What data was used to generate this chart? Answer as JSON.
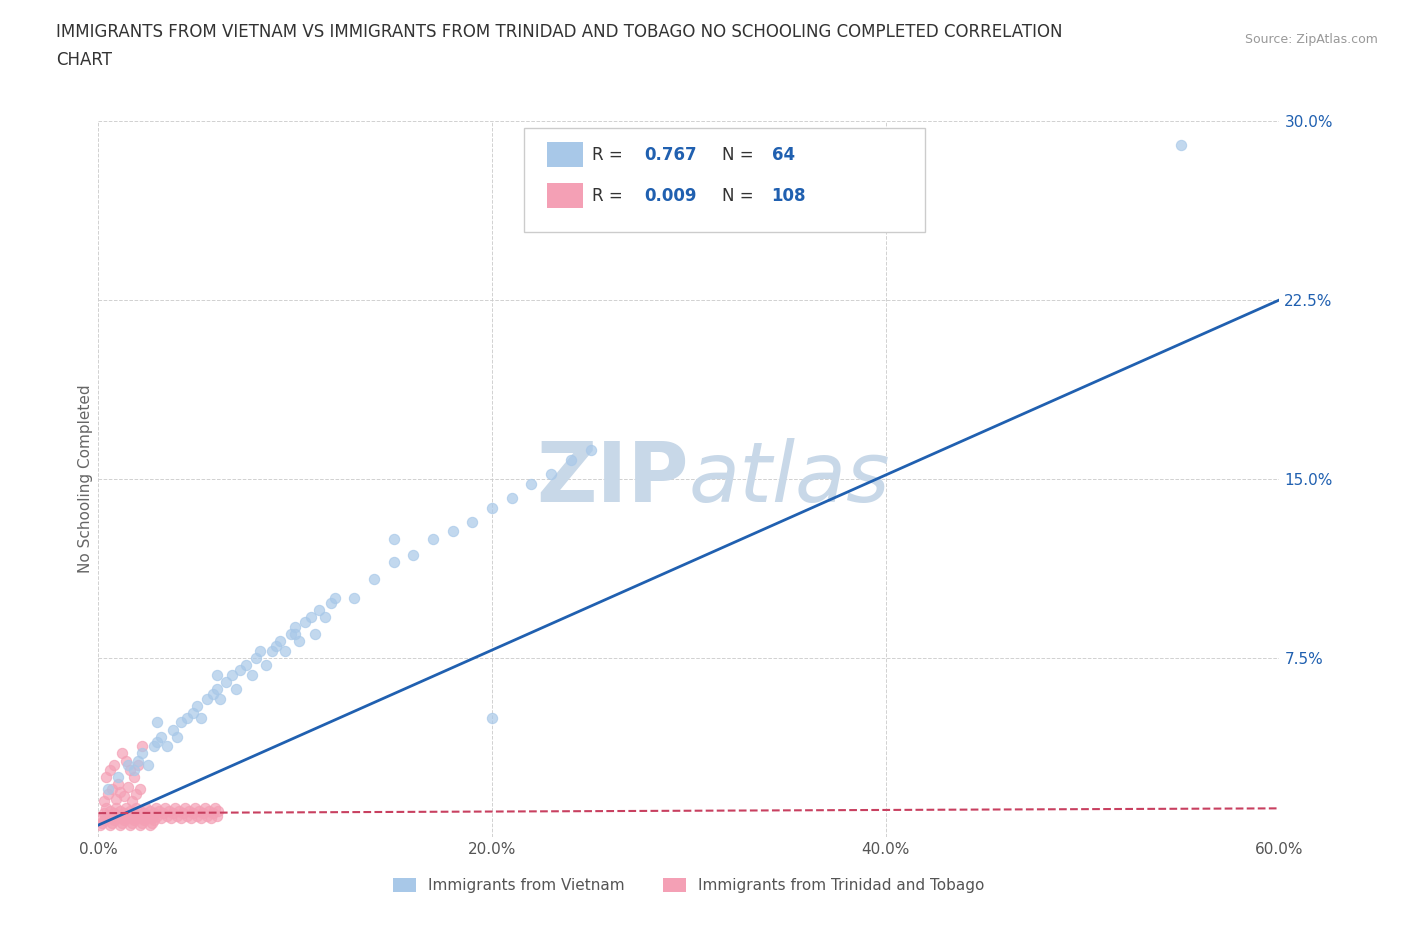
{
  "title_line1": "IMMIGRANTS FROM VIETNAM VS IMMIGRANTS FROM TRINIDAD AND TOBAGO NO SCHOOLING COMPLETED CORRELATION",
  "title_line2": "CHART",
  "source_text": "Source: ZipAtlas.com",
  "ylabel": "No Schooling Completed",
  "xlim": [
    0.0,
    0.6
  ],
  "ylim": [
    0.0,
    0.3
  ],
  "xtick_labels": [
    "0.0%",
    "20.0%",
    "40.0%",
    "60.0%"
  ],
  "xtick_values": [
    0.0,
    0.2,
    0.4,
    0.6
  ],
  "ytick_labels": [
    "7.5%",
    "15.0%",
    "22.5%",
    "30.0%"
  ],
  "ytick_values": [
    0.075,
    0.15,
    0.225,
    0.3
  ],
  "blue_R": 0.767,
  "blue_N": 64,
  "pink_R": 0.009,
  "pink_N": 108,
  "blue_color": "#a8c8e8",
  "pink_color": "#f4a0b5",
  "blue_line_color": "#2060b0",
  "pink_line_color": "#c84060",
  "watermark_color": "#c8d8e8",
  "legend_label_blue": "Immigrants from Vietnam",
  "legend_label_pink": "Immigrants from Trinidad and Tobago",
  "blue_scatter_x": [
    0.005,
    0.01,
    0.015,
    0.018,
    0.02,
    0.022,
    0.025,
    0.028,
    0.03,
    0.032,
    0.035,
    0.038,
    0.04,
    0.042,
    0.045,
    0.048,
    0.05,
    0.052,
    0.055,
    0.058,
    0.06,
    0.062,
    0.065,
    0.068,
    0.07,
    0.072,
    0.075,
    0.078,
    0.08,
    0.082,
    0.085,
    0.088,
    0.09,
    0.092,
    0.095,
    0.098,
    0.1,
    0.102,
    0.105,
    0.108,
    0.11,
    0.112,
    0.115,
    0.118,
    0.12,
    0.13,
    0.14,
    0.15,
    0.16,
    0.17,
    0.18,
    0.19,
    0.2,
    0.21,
    0.22,
    0.23,
    0.24,
    0.25,
    0.03,
    0.06,
    0.1,
    0.15,
    0.2,
    0.55
  ],
  "blue_scatter_y": [
    0.02,
    0.025,
    0.03,
    0.028,
    0.032,
    0.035,
    0.03,
    0.038,
    0.04,
    0.042,
    0.038,
    0.045,
    0.042,
    0.048,
    0.05,
    0.052,
    0.055,
    0.05,
    0.058,
    0.06,
    0.062,
    0.058,
    0.065,
    0.068,
    0.062,
    0.07,
    0.072,
    0.068,
    0.075,
    0.078,
    0.072,
    0.078,
    0.08,
    0.082,
    0.078,
    0.085,
    0.088,
    0.082,
    0.09,
    0.092,
    0.085,
    0.095,
    0.092,
    0.098,
    0.1,
    0.1,
    0.108,
    0.115,
    0.118,
    0.125,
    0.128,
    0.132,
    0.138,
    0.142,
    0.148,
    0.152,
    0.158,
    0.162,
    0.048,
    0.068,
    0.085,
    0.125,
    0.05,
    0.29
  ],
  "pink_scatter_x": [
    0.002,
    0.003,
    0.004,
    0.005,
    0.006,
    0.007,
    0.008,
    0.009,
    0.01,
    0.011,
    0.012,
    0.013,
    0.014,
    0.015,
    0.016,
    0.017,
    0.018,
    0.019,
    0.02,
    0.021,
    0.022,
    0.023,
    0.024,
    0.025,
    0.026,
    0.027,
    0.028,
    0.029,
    0.03,
    0.031,
    0.032,
    0.033,
    0.034,
    0.035,
    0.036,
    0.037,
    0.038,
    0.039,
    0.04,
    0.041,
    0.042,
    0.043,
    0.044,
    0.045,
    0.046,
    0.047,
    0.048,
    0.049,
    0.05,
    0.051,
    0.052,
    0.053,
    0.054,
    0.055,
    0.056,
    0.057,
    0.058,
    0.059,
    0.06,
    0.061,
    0.003,
    0.005,
    0.007,
    0.009,
    0.011,
    0.013,
    0.015,
    0.017,
    0.019,
    0.021,
    0.004,
    0.006,
    0.008,
    0.01,
    0.012,
    0.014,
    0.016,
    0.018,
    0.02,
    0.022,
    0.001,
    0.002,
    0.003,
    0.004,
    0.005,
    0.006,
    0.007,
    0.008,
    0.009,
    0.01,
    0.011,
    0.012,
    0.013,
    0.014,
    0.015,
    0.016,
    0.017,
    0.018,
    0.019,
    0.02,
    0.021,
    0.022,
    0.023,
    0.024,
    0.025,
    0.026,
    0.027,
    0.028
  ],
  "pink_scatter_y": [
    0.008,
    0.01,
    0.012,
    0.009,
    0.011,
    0.008,
    0.01,
    0.012,
    0.009,
    0.011,
    0.008,
    0.01,
    0.012,
    0.009,
    0.011,
    0.008,
    0.01,
    0.012,
    0.009,
    0.011,
    0.008,
    0.01,
    0.012,
    0.009,
    0.011,
    0.008,
    0.01,
    0.012,
    0.009,
    0.011,
    0.008,
    0.01,
    0.012,
    0.009,
    0.011,
    0.008,
    0.01,
    0.012,
    0.009,
    0.011,
    0.008,
    0.01,
    0.012,
    0.009,
    0.011,
    0.008,
    0.01,
    0.012,
    0.009,
    0.011,
    0.008,
    0.01,
    0.012,
    0.009,
    0.011,
    0.008,
    0.01,
    0.012,
    0.009,
    0.011,
    0.015,
    0.018,
    0.02,
    0.016,
    0.019,
    0.017,
    0.021,
    0.015,
    0.018,
    0.02,
    0.025,
    0.028,
    0.03,
    0.022,
    0.035,
    0.032,
    0.028,
    0.025,
    0.03,
    0.038,
    0.005,
    0.006,
    0.007,
    0.008,
    0.009,
    0.005,
    0.006,
    0.007,
    0.008,
    0.009,
    0.005,
    0.006,
    0.007,
    0.008,
    0.009,
    0.005,
    0.006,
    0.007,
    0.008,
    0.009,
    0.005,
    0.006,
    0.007,
    0.008,
    0.009,
    0.005,
    0.006,
    0.007
  ],
  "blue_trend_x": [
    0.0,
    0.6
  ],
  "blue_trend_y": [
    0.005,
    0.225
  ],
  "pink_trend_x": [
    0.0,
    0.6
  ],
  "pink_trend_y": [
    0.01,
    0.012
  ],
  "background_color": "#ffffff",
  "grid_color": "#cccccc",
  "title_fontsize": 12,
  "axis_label_fontsize": 11
}
